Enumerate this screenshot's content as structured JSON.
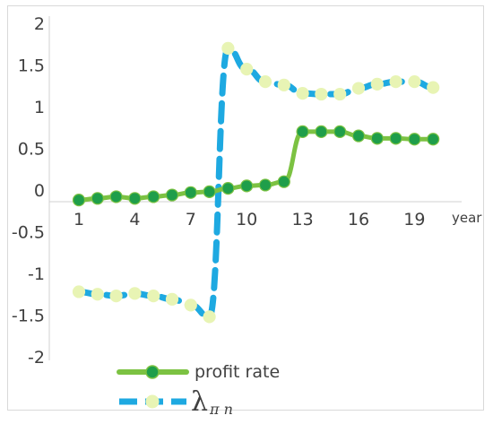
{
  "chart_data": {
    "type": "line",
    "x_label": "year",
    "x": [
      1,
      2,
      3,
      4,
      5,
      6,
      7,
      8,
      9,
      10,
      11,
      12,
      13,
      14,
      15,
      16,
      17,
      18,
      19,
      20
    ],
    "x_tick_labels": [
      "1",
      "4",
      "7",
      "10",
      "13",
      "16",
      "19"
    ],
    "y_tick_labels": [
      "2",
      "1.5",
      "1",
      "0.5",
      "0",
      "-0.5",
      "-1",
      "-1.5",
      "-2"
    ],
    "ylim": [
      -2,
      2
    ],
    "grid": false,
    "legend_position": "bottom",
    "series": [
      {
        "name": "profit rate",
        "color": "#7cc242",
        "marker_color": "#1f9e4a",
        "style": "solid",
        "values": [
          -0.12,
          -0.1,
          -0.08,
          -0.1,
          -0.08,
          -0.06,
          -0.03,
          -0.02,
          0.02,
          0.05,
          0.06,
          0.1,
          0.7,
          0.7,
          0.7,
          0.65,
          0.62,
          0.62,
          0.61,
          0.61
        ]
      },
      {
        "name_symbol": "λ",
        "name_subscript": "π n",
        "color": "#1ea9e1",
        "marker_color": "#e8f4b4",
        "style": "dashed",
        "values": [
          -1.22,
          -1.25,
          -1.27,
          -1.24,
          -1.27,
          -1.31,
          -1.38,
          -1.52,
          1.7,
          1.45,
          1.3,
          1.26,
          1.16,
          1.15,
          1.15,
          1.22,
          1.27,
          1.3,
          1.3,
          1.23
        ]
      }
    ]
  }
}
